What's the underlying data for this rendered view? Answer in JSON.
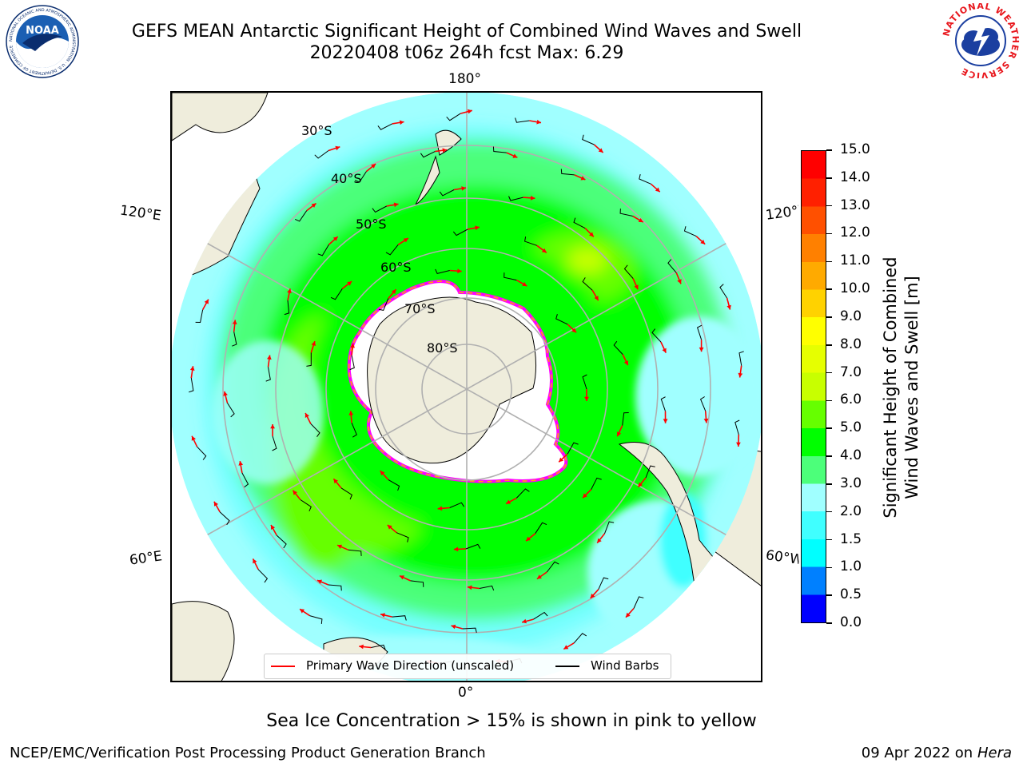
{
  "title": {
    "line1": "GEFS MEAN Antarctic Significant Height of Combined Wind Waves and Swell",
    "line2": "20220408 t06z 264h fcst   Max: 6.29"
  },
  "map": {
    "lon_labels": {
      "top": "180°",
      "bottom": "0°",
      "upper_left": "120°E",
      "upper_right": "120°W",
      "lower_left": "60°E",
      "lower_right": "60°W"
    },
    "lat_labels": [
      "30°S",
      "40°S",
      "50°S",
      "60°S",
      "70°S",
      "80°S"
    ],
    "colors": {
      "land": "#efeddc",
      "ocean_outside": "#ffffff",
      "ice": "#ffffff",
      "ice_edge": "#ff00ff",
      "arrow": "#ff0000",
      "barb": "#000000",
      "grid": "#b0b0b0"
    }
  },
  "colorbar": {
    "label_line1": "Significant Height of Combined",
    "label_line2": "Wind Waves and Swell [m]",
    "ticks": [
      "0.0",
      "0.5",
      "1.0",
      "1.5",
      "2.0",
      "3.0",
      "4.0",
      "5.0",
      "6.0",
      "7.0",
      "8.0",
      "9.0",
      "10.0",
      "11.0",
      "12.0",
      "13.0",
      "14.0",
      "15.0"
    ],
    "colors": [
      "#0000ff",
      "#0080ff",
      "#00ffff",
      "#40ffff",
      "#a0ffff",
      "#4cff7a",
      "#00ff00",
      "#66ff00",
      "#c8ff00",
      "#e6ff00",
      "#ffff00",
      "#ffd200",
      "#ffaa00",
      "#ff8000",
      "#ff5000",
      "#ff2000",
      "#ff0000"
    ]
  },
  "legend": {
    "wave_label": "Primary Wave Direction (unscaled)",
    "barb_label": "Wind Barbs"
  },
  "logos": {
    "left": {
      "name": "NOAA",
      "ring_text": "NATIONAL OCEANIC AND ATMOSPHERIC ADMINISTRATION · U.S. DEPARTMENT OF COMMERCE"
    },
    "right": {
      "ring_text": "NATIONAL WEATHER SERVICE"
    }
  },
  "note": "Sea Ice Concentration > 15% is shown in pink to yellow",
  "footer": {
    "left": "NCEP/EMC/Verification Post Processing Product Generation Branch",
    "date": "09 Apr 2022 on ",
    "machine": "Hera"
  }
}
